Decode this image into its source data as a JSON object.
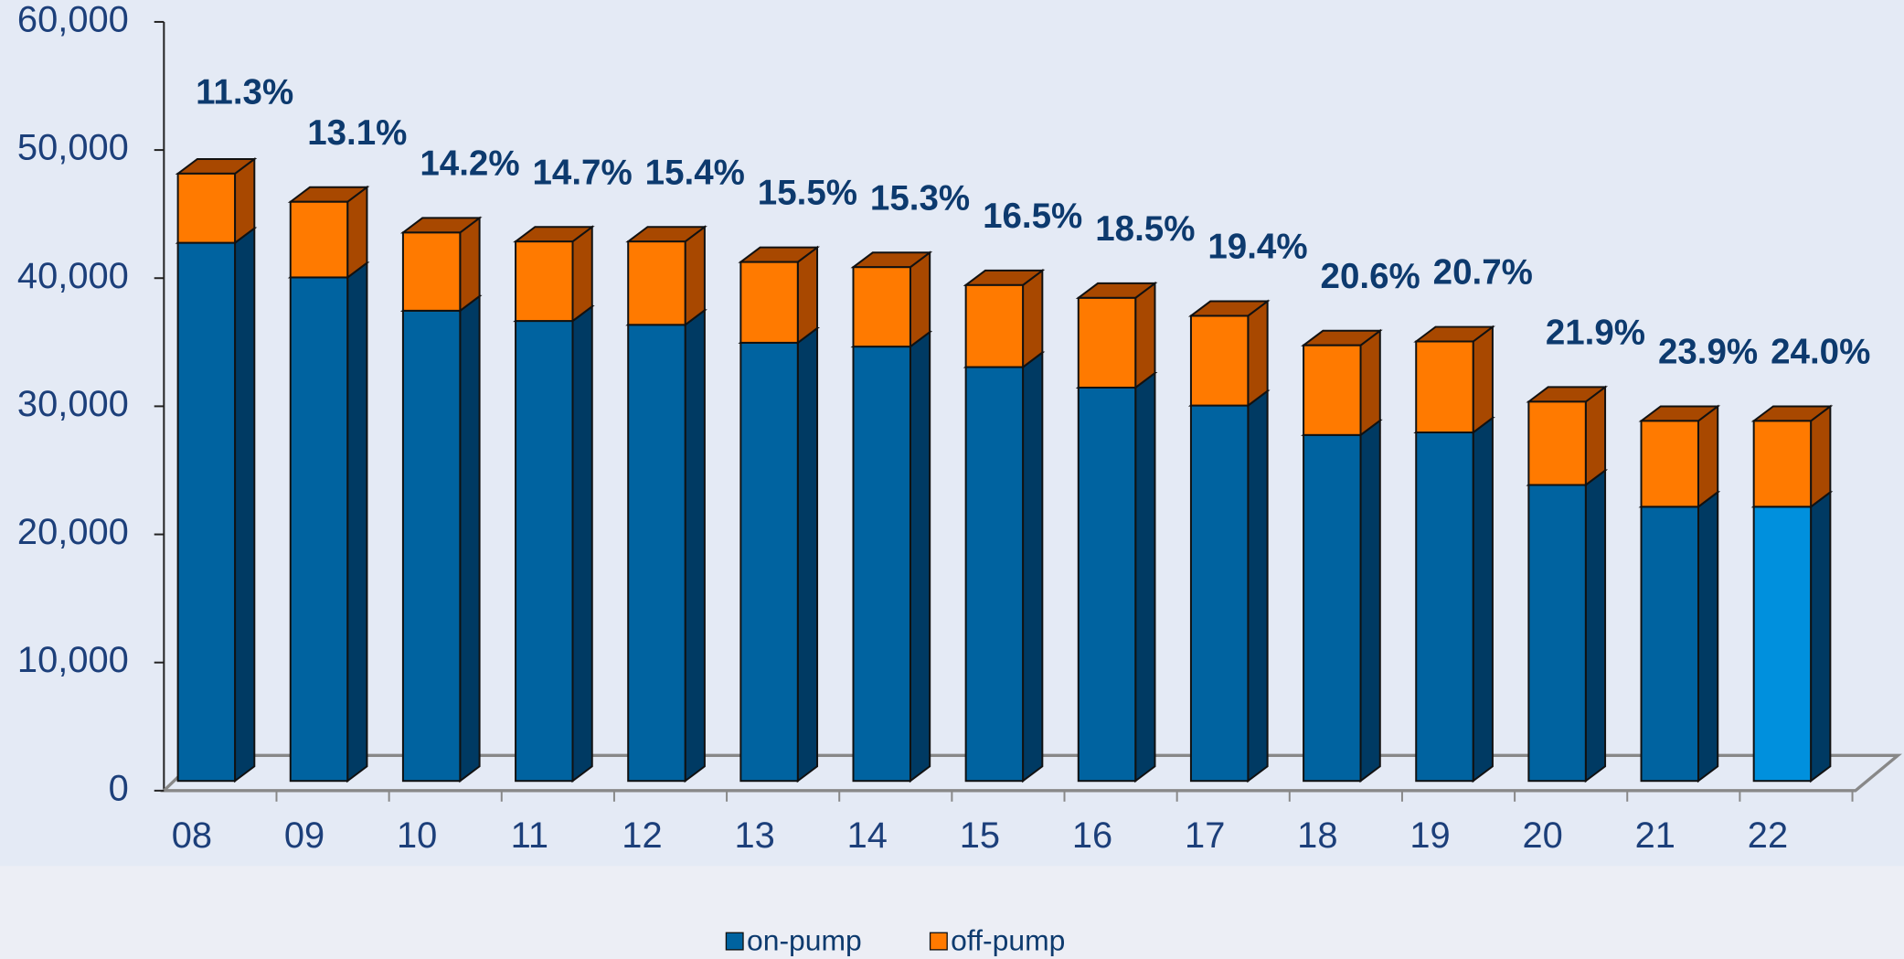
{
  "chart_data": {
    "type": "bar3d_stacked",
    "categories": [
      "08",
      "09",
      "10",
      "11",
      "12",
      "13",
      "14",
      "15",
      "16",
      "17",
      "18",
      "19",
      "20",
      "21",
      "22"
    ],
    "series": [
      {
        "name": "on-pump",
        "color": "#0063a0",
        "side_color": "#003a63",
        "colors": [
          "#0063a0",
          "#0063a0",
          "#0063a0",
          "#0063a0",
          "#0063a0",
          "#0063a0",
          "#0063a0",
          "#0063a0",
          "#0063a0",
          "#0063a0",
          "#0063a0",
          "#0063a0",
          "#0063a0",
          "#0063a0",
          "#0090dd"
        ],
        "values": [
          42000,
          39300,
          36700,
          35900,
          35600,
          34200,
          33900,
          32300,
          30700,
          29300,
          27000,
          27200,
          23100,
          21400,
          21400
        ]
      },
      {
        "name": "off-pump",
        "color": "#ff7a00",
        "side_color": "#a84800",
        "values": [
          5400,
          5900,
          6100,
          6200,
          6500,
          6300,
          6200,
          6400,
          7000,
          7000,
          7000,
          7100,
          6500,
          6700,
          6700
        ]
      }
    ],
    "percent_labels": [
      "11.3%",
      "13.1%",
      "14.2%",
      "14.7%",
      "15.4%",
      "15.5%",
      "15.3%",
      "16.5%",
      "18.5%",
      "19.4%",
      "20.6%",
      "20.7%",
      "21.9%",
      "23.9%",
      "24.0%"
    ],
    "ylim": [
      0,
      60000
    ],
    "yticks": [
      0,
      {
        "value": 10000,
        "label": "10,000"
      },
      {
        "value": 20000,
        "label": "20,000"
      },
      {
        "value": 30000,
        "label": "30,000"
      },
      {
        "value": 40000,
        "label": "40,000"
      },
      {
        "value": 50000,
        "label": "50,000"
      },
      {
        "value": 60000,
        "label": "60,000"
      }
    ],
    "legend": "bottom"
  }
}
